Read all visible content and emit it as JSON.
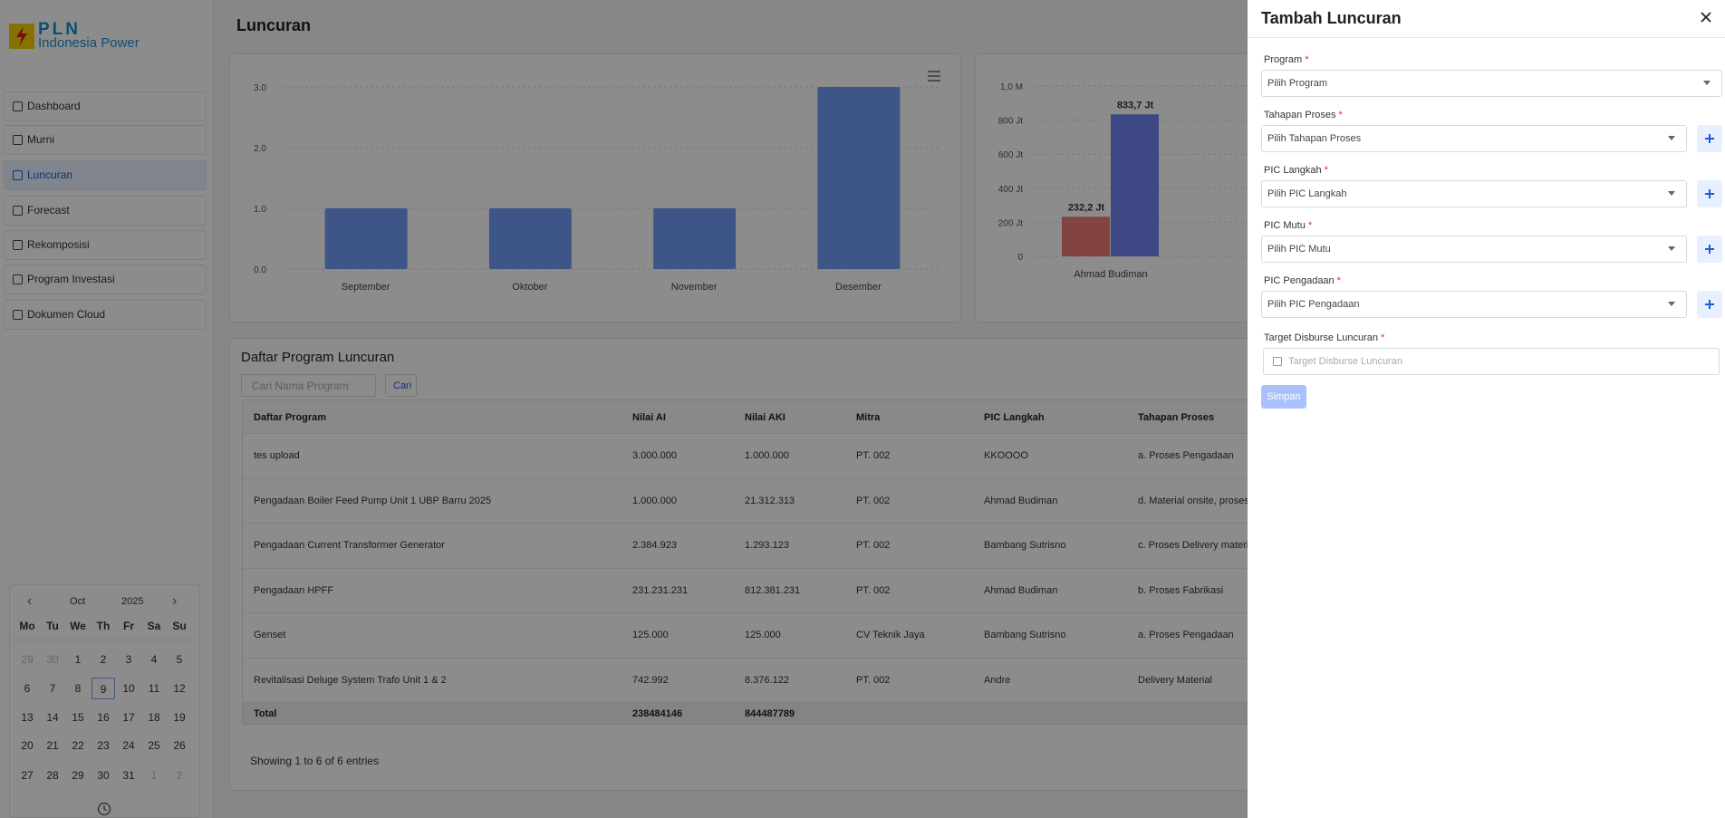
{
  "logo": {
    "title": "PLN",
    "subtitle": "Indonesia Power"
  },
  "menu": [
    "Dashboard",
    "Murni",
    "Luncuran",
    "Forecast",
    "Rekomposisi",
    "Program Investasi",
    "Dokumen Cloud"
  ],
  "calendar": {
    "month": "Oct",
    "year": "2025",
    "weekdays": [
      "Mo",
      "Tu",
      "We",
      "Th",
      "Fr",
      "Sa",
      "Su"
    ],
    "weeks": [
      [
        "29",
        "30",
        "1",
        "2",
        "3",
        "4",
        "5"
      ],
      [
        "6",
        "7",
        "8",
        "9",
        "10",
        "11",
        "12"
      ],
      [
        "13",
        "14",
        "15",
        "16",
        "17",
        "18",
        "19"
      ],
      [
        "20",
        "21",
        "22",
        "23",
        "24",
        "25",
        "26"
      ],
      [
        "27",
        "28",
        "29",
        "30",
        "31",
        "1",
        "2"
      ]
    ]
  },
  "page_title": "Luncuran",
  "monthly_chart": {
    "type": "bar",
    "categories": [
      "September",
      "Oktober",
      "November",
      "Desember"
    ],
    "values": [
      1,
      1,
      1,
      3
    ],
    "color": "#6f9cf6",
    "ylim": [
      0,
      3
    ],
    "yticks": [
      {
        "value": 0,
        "label": "0.0"
      },
      {
        "value": 1,
        "label": "1.0"
      },
      {
        "value": 2,
        "label": "2.0"
      },
      {
        "value": 3,
        "label": "3.0"
      }
    ],
    "grid": true
  },
  "pic_chart": {
    "type": "bar",
    "categories": [
      "Ahmad Budiman"
    ],
    "ylim": [
      0,
      1000000000
    ],
    "yticks": [
      0,
      {
        "value": 200000000,
        "label": "200 Jt"
      },
      {
        "value": 400000000,
        "label": "400 Jt"
      },
      {
        "value": 600000000,
        "label": "600 Jt"
      },
      {
        "value": 800000000,
        "label": "800 Jt"
      },
      {
        "value": 1000000000,
        "label": "1,0 M"
      }
    ],
    "grid": true,
    "series": [
      {
        "color": "#ee7b7b",
        "values": [
          232200000
        ],
        "value_labels": [
          "232,2 Jt"
        ]
      },
      {
        "color": "#7183f0",
        "values": [
          833700000
        ],
        "value_labels": [
          "833,7 Jt"
        ]
      }
    ]
  },
  "table": {
    "title": "Daftar Program Luncuran",
    "search_placeholder": "Cari Nama Program",
    "search_button": "Cari",
    "columns": [
      "Daftar Program",
      "Nilai AI",
      "Nilai AKI",
      "Mitra",
      "PIC Langkah",
      "Tahapan Proses"
    ],
    "rows": [
      [
        "tes upload",
        "3.000.000",
        "1.000.000",
        "PT. 002",
        "KKOOOO",
        "a. Proses Pengadaan"
      ],
      [
        "Pengadaan Boiler Feed Pump Unit 1 UBP Barru 2025",
        "1.000.000",
        "21.312.313",
        "PT. 002",
        "Ahmad Budiman",
        "d. Material onsite, proses i"
      ],
      [
        "Pengadaan Current Transformer Generator",
        "2.384.923",
        "1.293.123",
        "PT. 002",
        "Bambang Sutrisno",
        "c. Proses Delivery material"
      ],
      [
        "Pengadaan HPFF",
        "231.231.231",
        "812.381.231",
        "PT. 002",
        "Ahmad Budiman",
        "b. Proses Fabrikasi"
      ],
      [
        "Genset",
        "125.000",
        "125.000",
        "CV Teknik Jaya",
        "Bambang Sutrisno",
        "a. Proses Pengadaan"
      ],
      [
        "Revitalisasi Deluge System Trafo Unit 1 & 2",
        "742.992",
        "8.376.122",
        "PT. 002",
        "Andre",
        "Delivery Material"
      ]
    ],
    "total": [
      "Total",
      "238484146",
      "844487789"
    ],
    "info": "Showing 1 to 6 of 6 entries"
  },
  "drawer": {
    "title": "Tambah Luncuran",
    "required_mark": "*",
    "submit": "Simpan",
    "fields": [
      {
        "label": "Program",
        "placeholder": "Pilih Program"
      },
      {
        "label": "Tahapan Proses",
        "placeholder": "Pilih Tahapan Proses"
      },
      {
        "label": "PIC Langkah",
        "placeholder": "Pilih PIC Langkah"
      },
      {
        "label": "PIC Mutu",
        "placeholder": "Pilih PIC Mutu"
      },
      {
        "label": "PIC Pengadaan",
        "placeholder": "Pilih PIC Pengadaan"
      },
      {
        "label": "Target Disburse Luncuran",
        "placeholder": "Target Disburse Luncuran"
      }
    ]
  }
}
